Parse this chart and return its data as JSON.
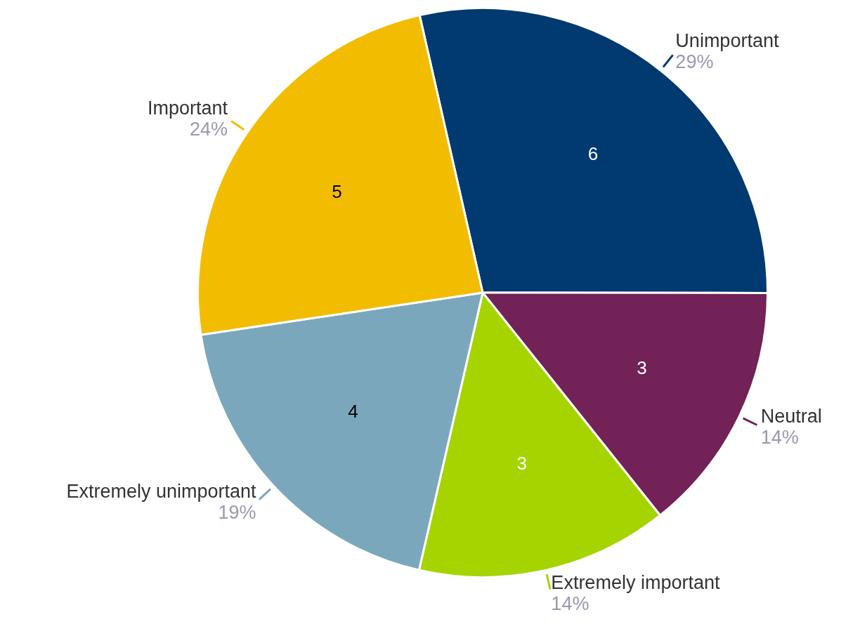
{
  "chart_data": {
    "type": "pie",
    "categories": [
      "Unimportant",
      "Neutral",
      "Extremely important",
      "Extremely unimportant",
      "Important"
    ],
    "values": [
      6,
      3,
      3,
      4,
      5
    ],
    "colors": [
      "#003a70",
      "#722257",
      "#a6d400",
      "#7ba7bd",
      "#f2bd00"
    ],
    "annotations": [
      {
        "text": "29%",
        "x": "Unimportant"
      },
      {
        "text": "14%",
        "x": "Neutral"
      },
      {
        "text": "14%",
        "x": "Extremely important"
      },
      {
        "text": "19%",
        "x": "Extremely unimportant"
      },
      {
        "text": "24%",
        "x": "Important"
      }
    ],
    "data_labels": true,
    "legend": false
  }
}
